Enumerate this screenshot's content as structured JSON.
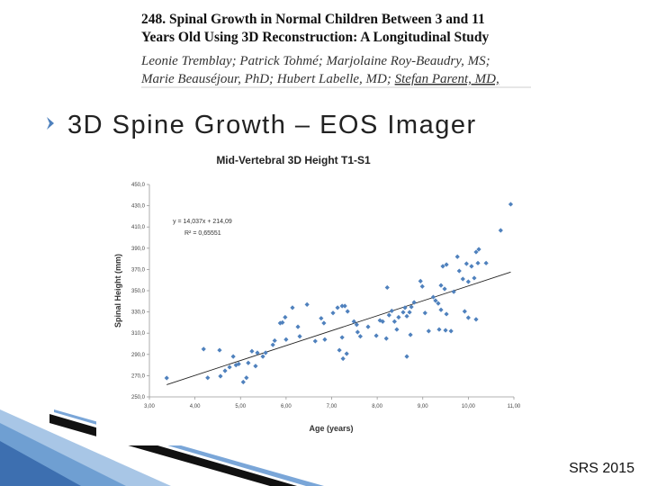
{
  "header": {
    "title_lines": [
      "248. Spinal Growth in Normal Children Between 3 and 11",
      "Years Old Using 3D Reconstruction: A Longitudinal Study"
    ],
    "author_lines": [
      "Leonie Tremblay; Patrick Tohmé; Marjolaine Roy-Beaudry, MS;",
      "Marie Beauséjour, PhD; Hubert Labelle, MD; ",
      "Stefan Parent, MD,"
    ]
  },
  "slide_title": "3D Spine Growth – EOS Imager",
  "footer": "SRS 2015",
  "chart_data": {
    "type": "scatter",
    "title": "Mid-Vertebral 3D Height T1-S1",
    "x_label": "Age (years)",
    "y_label": "Spinal Height (mm)",
    "color": "#4f81bd",
    "x": [
      3.38,
      4.19,
      4.28,
      4.54,
      4.56,
      4.66,
      4.76,
      4.84,
      4.9,
      4.96,
      5.06,
      5.13,
      5.17,
      5.25,
      5.33,
      5.37,
      5.49,
      5.55,
      5.71,
      5.75,
      5.87,
      5.92,
      5.98,
      6.0,
      6.14,
      6.26,
      6.3,
      6.46,
      6.64,
      6.77,
      6.83,
      6.85,
      7.03,
      7.13,
      7.17,
      7.23,
      7.23,
      7.25,
      7.29,
      7.33,
      7.35,
      7.49,
      7.55,
      7.57,
      7.63,
      7.8,
      7.98,
      8.06,
      8.12,
      8.22,
      8.2,
      8.26,
      8.32,
      8.38,
      8.43,
      8.47,
      8.57,
      8.61,
      8.65,
      8.65,
      8.71,
      8.73,
      8.75,
      8.81,
      8.95,
      8.99,
      9.05,
      9.13,
      9.23,
      9.28,
      9.34,
      9.36,
      9.4,
      9.4,
      9.44,
      9.48,
      9.5,
      9.52,
      9.52,
      9.62,
      9.68,
      9.76,
      9.8,
      9.88,
      9.92,
      9.96,
      10.0,
      10.0,
      10.07,
      10.13,
      10.17,
      10.17,
      10.21,
      10.23,
      10.39,
      10.71,
      10.93
    ],
    "values": [
      267.8,
      295,
      268,
      294,
      269.5,
      274.6,
      278,
      288,
      280,
      281,
      264,
      268,
      282,
      293,
      279,
      291.5,
      288,
      291.5,
      299,
      303,
      319.5,
      320,
      325,
      304,
      334,
      316,
      307,
      337,
      302.5,
      324,
      319.5,
      304,
      329,
      334,
      294,
      306,
      335.6,
      286,
      335.6,
      290.7,
      330.5,
      321,
      318,
      311,
      307,
      316,
      307.6,
      322,
      321,
      353,
      305,
      327,
      331,
      321,
      313.5,
      325,
      329.7,
      334,
      326,
      288,
      329.7,
      308.5,
      334.7,
      339,
      359,
      354,
      329,
      312,
      344,
      340.7,
      338,
      313.5,
      332,
      355,
      373,
      351.7,
      312.7,
      328,
      374.6,
      312,
      349,
      382,
      368.6,
      361,
      330.5,
      375.4,
      358.5,
      324.6,
      373,
      361.9,
      386.4,
      323,
      376,
      389,
      376,
      406.8,
      431.4
    ],
    "trendline": {
      "slope": 14.037,
      "intercept": 214.09
    },
    "annotations": [
      "y = 14,037x + 214,09",
      "R² = 0,65551"
    ],
    "xlim": [
      3,
      11
    ],
    "xticks": [
      {
        "value": 3,
        "label": "3,00"
      },
      {
        "value": 4,
        "label": "4,00"
      },
      {
        "value": 5,
        "label": "5,00"
      },
      {
        "value": 6,
        "label": "6,00"
      },
      {
        "value": 7,
        "label": "7,00"
      },
      {
        "value": 8,
        "label": "8,00"
      },
      {
        "value": 9,
        "label": "9,00"
      },
      {
        "value": 10,
        "label": "10,00"
      },
      {
        "value": 11,
        "label": "11,00"
      }
    ],
    "ylim": [
      250,
      450
    ],
    "yticks": [
      {
        "value": 250,
        "label": "250,0"
      },
      {
        "value": 270,
        "label": "270,0"
      },
      {
        "value": 290,
        "label": "290,0"
      },
      {
        "value": 310,
        "label": "310,0"
      },
      {
        "value": 330,
        "label": "330,0"
      },
      {
        "value": 350,
        "label": "350,0"
      },
      {
        "value": 370,
        "label": "370,0"
      },
      {
        "value": 390,
        "label": "390,0"
      },
      {
        "value": 410,
        "label": "410,0"
      },
      {
        "value": 430,
        "label": "430,0"
      },
      {
        "value": 450,
        "label": "450,0"
      }
    ],
    "grid": false
  }
}
